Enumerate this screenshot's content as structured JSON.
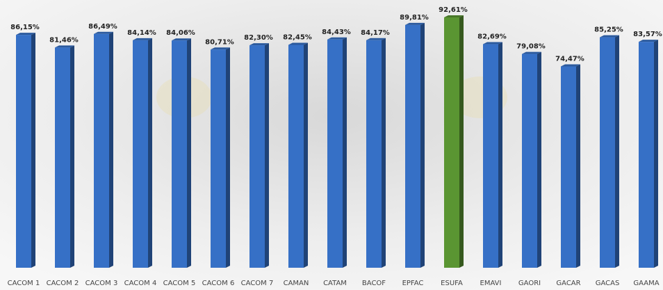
{
  "chart_data": {
    "type": "bar",
    "categories": [
      "CACOM 1",
      "CACOM 2",
      "CACOM 3",
      "CACOM 4",
      "CACOM 5",
      "CACOM 6",
      "CACOM 7",
      "CAMAN",
      "CATAM",
      "BACOF",
      "EPFAC",
      "ESUFA",
      "EMAVI",
      "GAORI",
      "GACAR",
      "GACAS",
      "GAAMA"
    ],
    "values": [
      86.15,
      81.46,
      86.49,
      84.14,
      84.06,
      80.71,
      82.3,
      82.45,
      84.43,
      84.17,
      89.81,
      92.61,
      82.69,
      79.08,
      74.47,
      85.25,
      83.57
    ],
    "value_labels": [
      "86,15%",
      "81,46%",
      "86,49%",
      "84,14%",
      "84,06%",
      "80,71%",
      "82,30%",
      "82,45%",
      "84,43%",
      "84,17%",
      "89,81%",
      "92,61%",
      "82,69%",
      "79,08%",
      "74,47%",
      "85,25%",
      "83,57%"
    ],
    "colors": [
      "#3670c6",
      "#3670c6",
      "#3670c6",
      "#3670c6",
      "#3670c6",
      "#3670c6",
      "#3670c6",
      "#3670c6",
      "#3670c6",
      "#3670c6",
      "#3670c6",
      "#5a9532",
      "#3670c6",
      "#3670c6",
      "#3670c6",
      "#3670c6",
      "#3670c6"
    ]
  }
}
